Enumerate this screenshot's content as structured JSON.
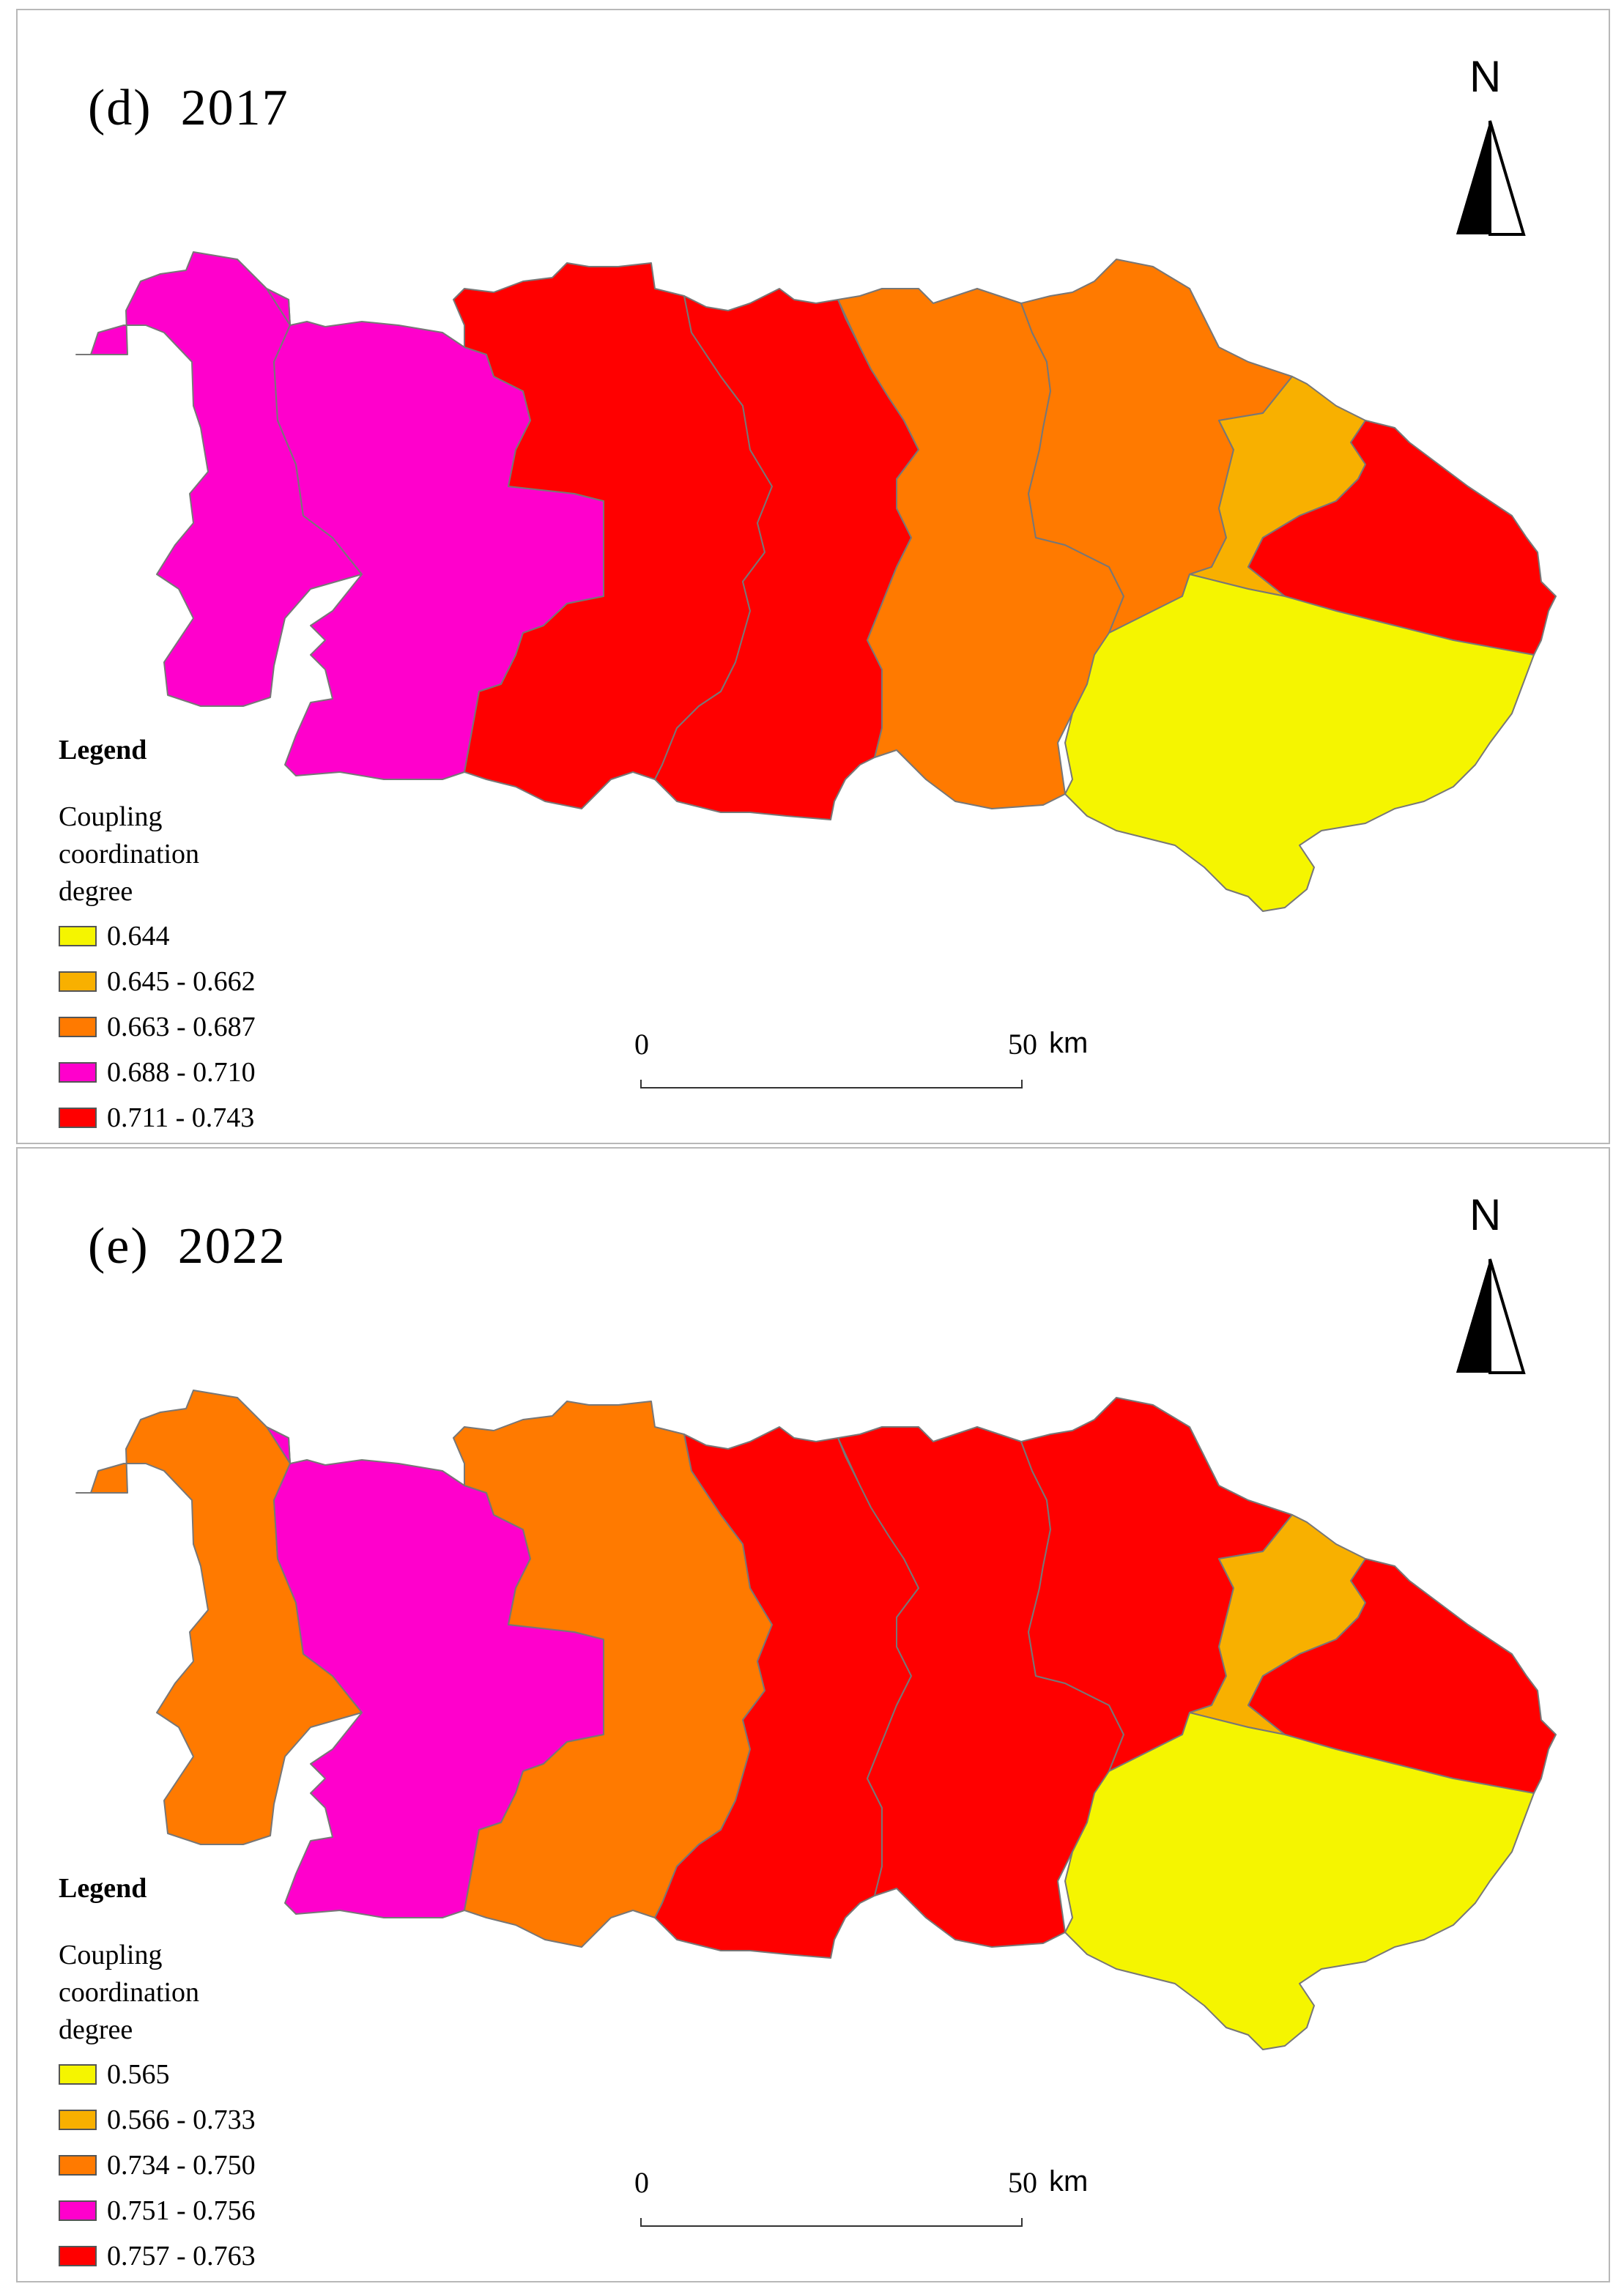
{
  "colors": {
    "yellow": "#f5f500",
    "light_orange": "#f8b000",
    "orange": "#ff7a00",
    "magenta": "#ff00cc",
    "red": "#ff0000",
    "border": "#777777"
  },
  "icons": {
    "north_arrow": "north-arrow-icon"
  },
  "panels": [
    {
      "id": "d",
      "title": "(d)  2017",
      "north_label": "N",
      "legend": {
        "heading": "Legend",
        "subtitle": "Coupling coordination degree",
        "items": [
          {
            "label": "0.644",
            "color": "#f5f500"
          },
          {
            "label": "0.645 - 0.662",
            "color": "#f8b000"
          },
          {
            "label": "0.663 - 0.687",
            "color": "#ff7a00"
          },
          {
            "label": "0.688 - 0.710",
            "color": "#ff00cc"
          },
          {
            "label": "0.711 - 0.743",
            "color": "#ff0000"
          }
        ]
      },
      "scalebar": {
        "start": "0",
        "end": "50",
        "unit": "km"
      },
      "regions": {
        "r1": "#ff00cc",
        "r2": "#ff00cc",
        "r3": "#ff0000",
        "r4": "#ff0000",
        "r5": "#ff7a00",
        "r6": "#ff7a00",
        "r7": "#f8b000",
        "r8": "#ff0000",
        "r9": "#f5f500"
      }
    },
    {
      "id": "e",
      "title": "(e)  2022",
      "north_label": "N",
      "legend": {
        "heading": "Legend",
        "subtitle": "Coupling coordination degree",
        "items": [
          {
            "label": "0.565",
            "color": "#f5f500"
          },
          {
            "label": "0.566 - 0.733",
            "color": "#f8b000"
          },
          {
            "label": "0.734 - 0.750",
            "color": "#ff7a00"
          },
          {
            "label": "0.751 - 0.756",
            "color": "#ff00cc"
          },
          {
            "label": "0.757 - 0.763",
            "color": "#ff0000"
          }
        ]
      },
      "scalebar": {
        "start": "0",
        "end": "50",
        "unit": "km"
      },
      "regions": {
        "r1": "#ff7a00",
        "r2": "#ff00cc",
        "r3": "#ff7a00",
        "r4": "#ff0000",
        "r5": "#ff0000",
        "r6": "#ff0000",
        "r7": "#f8b000",
        "r8": "#ff0000",
        "r9": "#f5f500"
      }
    }
  ]
}
